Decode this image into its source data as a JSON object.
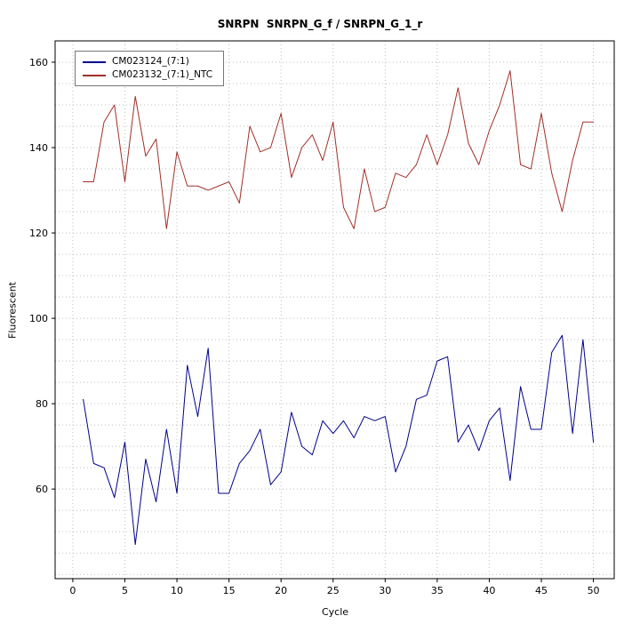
{
  "title": "SNRPN  SNRPN_G_f / SNRPN_G_1_r",
  "chart_data": {
    "type": "line",
    "title": "SNRPN  SNRPN_G_f / SNRPN_G_1_r",
    "xlabel": "Cycle",
    "ylabel": "Fluorescent",
    "xlim": [
      -1.7,
      52
    ],
    "ylim": [
      39,
      165
    ],
    "x_ticks": [
      0,
      5,
      10,
      15,
      20,
      25,
      30,
      35,
      40,
      45,
      50
    ],
    "y_ticks": [
      60,
      80,
      100,
      120,
      140,
      160
    ],
    "grid_step": 5,
    "grid_on": true,
    "legend_position": "top-left",
    "x": [
      1,
      2,
      3,
      4,
      5,
      6,
      7,
      8,
      9,
      10,
      11,
      12,
      13,
      14,
      15,
      16,
      17,
      18,
      19,
      20,
      21,
      22,
      23,
      24,
      25,
      26,
      27,
      28,
      29,
      30,
      31,
      32,
      33,
      34,
      35,
      36,
      37,
      38,
      39,
      40,
      41,
      42,
      43,
      44,
      45,
      46,
      47,
      48,
      49,
      50
    ],
    "series": [
      {
        "name": "CM023124_(7:1)",
        "color": "#00008B",
        "values": [
          81,
          66,
          65,
          58,
          71,
          47,
          67,
          57,
          74,
          59,
          89,
          77,
          93,
          59,
          59,
          66,
          69,
          74,
          61,
          64,
          78,
          70,
          68,
          76,
          73,
          76,
          72,
          77,
          76,
          77,
          64,
          70,
          81,
          82,
          90,
          91,
          71,
          75,
          69,
          76,
          79,
          62,
          84,
          74,
          74,
          92,
          96,
          73,
          95,
          71
        ]
      },
      {
        "name": "CM023132_(7:1)_NTC",
        "color": "#A03028",
        "values": [
          132,
          132,
          146,
          150,
          132,
          152,
          138,
          142,
          121,
          139,
          131,
          131,
          130,
          131,
          132,
          127,
          145,
          139,
          140,
          148,
          133,
          140,
          143,
          137,
          146,
          126,
          121,
          135,
          125,
          126,
          134,
          133,
          136,
          143,
          136,
          143,
          154,
          141,
          136,
          144,
          150,
          158,
          136,
          135,
          148,
          134,
          125,
          137,
          146,
          146
        ]
      }
    ]
  }
}
